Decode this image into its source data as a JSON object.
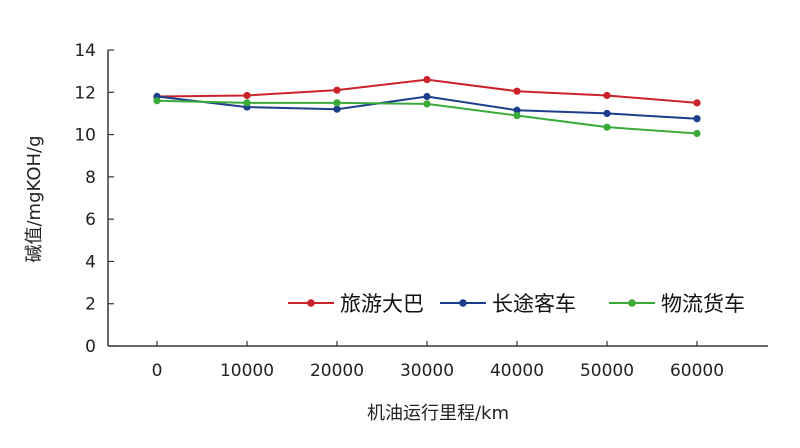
{
  "chart_data": {
    "type": "line",
    "title": "",
    "xlabel": "机油运行里程/km",
    "ylabel": "碱值/mgKOH/g",
    "x": [
      0,
      10000,
      20000,
      30000,
      40000,
      50000,
      60000
    ],
    "x_tick_labels": [
      "0",
      "10000",
      "20000",
      "30000",
      "40000",
      "50000",
      "60000"
    ],
    "ylim": [
      0,
      14
    ],
    "y_ticks": [
      0,
      2,
      4,
      6,
      8,
      10,
      12,
      14
    ],
    "y_tick_labels": [
      "0",
      "2",
      "4",
      "6",
      "8",
      "10",
      "12",
      "14"
    ],
    "grid": false,
    "legend_position": "bottom-right",
    "series": [
      {
        "name": "旅游大巴",
        "color": "#cc2229",
        "values": [
          11.8,
          11.85,
          12.1,
          12.6,
          12.05,
          11.85,
          11.5
        ]
      },
      {
        "name": "长途客车",
        "color": "#1c3f8c",
        "values": [
          11.8,
          11.3,
          11.2,
          11.8,
          11.15,
          11.0,
          10.75
        ]
      },
      {
        "name": "物流货车",
        "color": "#3aaa3a",
        "values": [
          11.6,
          11.5,
          11.5,
          11.45,
          10.9,
          10.35,
          10.05
        ]
      }
    ]
  }
}
